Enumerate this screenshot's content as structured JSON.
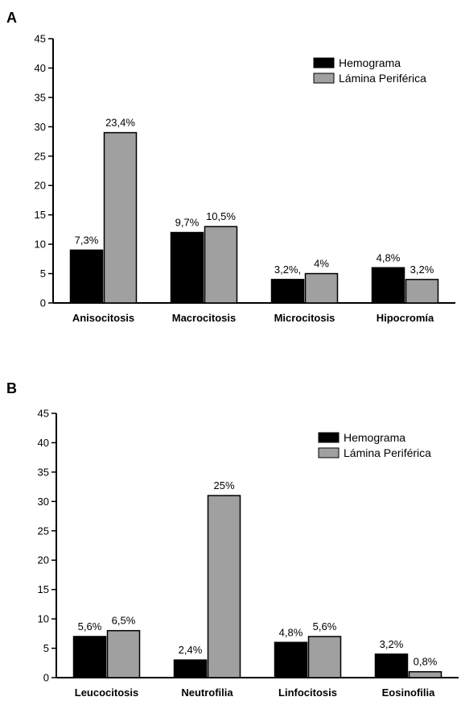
{
  "chart_data": [
    {
      "panel": "A",
      "type": "bar",
      "categories": [
        "Anisocitosis",
        "Macrocitosis",
        "Microcitosis",
        "Hipocromía"
      ],
      "series": [
        {
          "name": "Hemograma",
          "color": "#000000",
          "values": [
            9,
            12,
            4,
            6
          ],
          "labels": [
            "7,3%",
            "9,7%",
            "3,2%,",
            "4,8%"
          ]
        },
        {
          "name": "Lámina Periférica",
          "color": "#a0a0a0",
          "values": [
            29,
            13,
            5,
            4
          ],
          "labels": [
            "23,4%",
            "10,5%",
            "4%",
            "3,2%"
          ]
        }
      ],
      "yticks": [
        0,
        5,
        10,
        15,
        20,
        25,
        30,
        35,
        40,
        45
      ],
      "ylim": [
        0,
        45
      ],
      "grid": false,
      "legend_position": "top-right"
    },
    {
      "panel": "B",
      "type": "bar",
      "categories": [
        "Leucocitosis",
        "Neutrofilia",
        "Linfocitosis",
        "Eosinofilia"
      ],
      "series": [
        {
          "name": "Hemograma",
          "color": "#000000",
          "values": [
            7,
            3,
            6,
            4
          ],
          "labels": [
            "5,6%",
            "2,4%",
            "4,8%",
            "3,2%"
          ]
        },
        {
          "name": "Lámina Periférica",
          "color": "#a0a0a0",
          "values": [
            8,
            31,
            7,
            1
          ],
          "labels": [
            "6,5%",
            "25%",
            "5,6%",
            "0,8%"
          ]
        }
      ],
      "yticks": [
        0,
        5,
        10,
        15,
        20,
        25,
        30,
        35,
        40,
        45
      ],
      "ylim": [
        0,
        45
      ],
      "grid": false,
      "legend_position": "top-right"
    }
  ]
}
